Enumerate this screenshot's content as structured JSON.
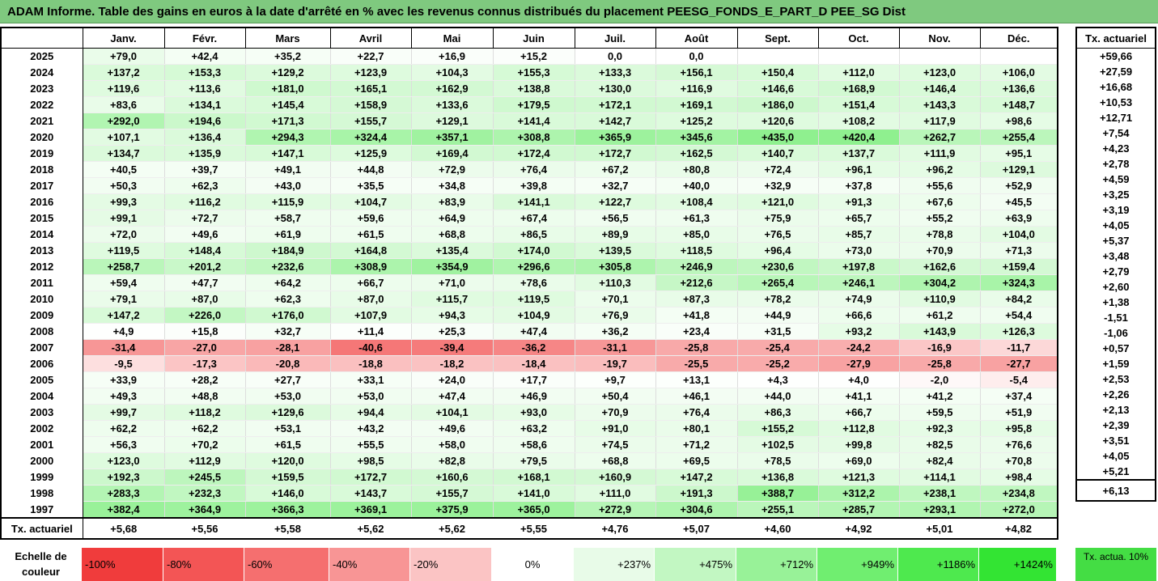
{
  "title": "ADAM Informe. Table des gains en euros à la date d'arrêté en % avec les revenus connus distribués du placement PEESG_FONDS_E_PART_D PEE_SG Dist",
  "chart_data": {
    "type": "heatmap",
    "title": "ADAM Informe. Table des gains en euros à la date d'arrêté en % avec les revenus connus distribués du placement PEESG_FONDS_E_PART_D PEE_SG Dist",
    "columns": [
      "Janv.",
      "Févr.",
      "Mars",
      "Avril",
      "Mai",
      "Juin",
      "Juil.",
      "Août",
      "Sept.",
      "Oct.",
      "Nov.",
      "Déc."
    ],
    "rate_header": "Tx. actuariel",
    "rows": [
      {
        "year": "2025",
        "values": [
          "+79,0",
          "+42,4",
          "+35,2",
          "+22,7",
          "+16,9",
          "+15,2",
          "0,0",
          "0,0",
          "",
          "",
          "",
          ""
        ],
        "rate": ""
      },
      {
        "year": "2024",
        "values": [
          "+137,2",
          "+153,3",
          "+129,2",
          "+123,9",
          "+104,3",
          "+155,3",
          "+133,3",
          "+156,1",
          "+150,4",
          "+112,0",
          "+123,0",
          "+106,0"
        ],
        "rate": "+59,66"
      },
      {
        "year": "2023",
        "values": [
          "+119,6",
          "+113,6",
          "+181,0",
          "+165,1",
          "+162,9",
          "+138,8",
          "+130,0",
          "+116,9",
          "+146,6",
          "+168,9",
          "+146,4",
          "+136,6"
        ],
        "rate": "+27,59"
      },
      {
        "year": "2022",
        "values": [
          "+83,6",
          "+134,1",
          "+145,4",
          "+158,9",
          "+133,6",
          "+179,5",
          "+172,1",
          "+169,1",
          "+186,0",
          "+151,4",
          "+143,3",
          "+148,7"
        ],
        "rate": "+16,68"
      },
      {
        "year": "2021",
        "values": [
          "+292,0",
          "+194,6",
          "+171,3",
          "+155,7",
          "+129,1",
          "+141,4",
          "+142,7",
          "+125,2",
          "+120,6",
          "+108,2",
          "+117,9",
          "+98,6"
        ],
        "rate": "+10,53"
      },
      {
        "year": "2020",
        "values": [
          "+107,1",
          "+136,4",
          "+294,3",
          "+324,4",
          "+357,1",
          "+308,8",
          "+365,9",
          "+345,6",
          "+435,0",
          "+420,4",
          "+262,7",
          "+255,4"
        ],
        "rate": "+12,71"
      },
      {
        "year": "2019",
        "values": [
          "+134,7",
          "+135,9",
          "+147,1",
          "+125,9",
          "+169,4",
          "+172,4",
          "+172,7",
          "+162,5",
          "+140,7",
          "+137,7",
          "+111,9",
          "+95,1"
        ],
        "rate": "+7,54"
      },
      {
        "year": "2018",
        "values": [
          "+40,5",
          "+39,7",
          "+49,1",
          "+44,8",
          "+72,9",
          "+76,4",
          "+67,2",
          "+80,8",
          "+72,4",
          "+96,1",
          "+96,2",
          "+129,1"
        ],
        "rate": "+4,23"
      },
      {
        "year": "2017",
        "values": [
          "+50,3",
          "+62,3",
          "+43,0",
          "+35,5",
          "+34,8",
          "+39,8",
          "+32,7",
          "+40,0",
          "+32,9",
          "+37,8",
          "+55,6",
          "+52,9"
        ],
        "rate": "+2,78"
      },
      {
        "year": "2016",
        "values": [
          "+99,3",
          "+116,2",
          "+115,9",
          "+104,7",
          "+83,9",
          "+141,1",
          "+122,7",
          "+108,4",
          "+121,0",
          "+91,3",
          "+67,6",
          "+45,5"
        ],
        "rate": "+4,59"
      },
      {
        "year": "2015",
        "values": [
          "+99,1",
          "+72,7",
          "+58,7",
          "+59,6",
          "+64,9",
          "+67,4",
          "+56,5",
          "+61,3",
          "+75,9",
          "+65,7",
          "+55,2",
          "+63,9"
        ],
        "rate": "+3,25"
      },
      {
        "year": "2014",
        "values": [
          "+72,0",
          "+49,6",
          "+61,9",
          "+61,5",
          "+68,8",
          "+86,5",
          "+89,9",
          "+85,0",
          "+76,5",
          "+85,7",
          "+78,8",
          "+104,0"
        ],
        "rate": "+3,19"
      },
      {
        "year": "2013",
        "values": [
          "+119,5",
          "+148,4",
          "+184,9",
          "+164,8",
          "+135,4",
          "+174,0",
          "+139,5",
          "+118,5",
          "+96,4",
          "+73,0",
          "+70,9",
          "+71,3"
        ],
        "rate": "+4,05"
      },
      {
        "year": "2012",
        "values": [
          "+258,7",
          "+201,2",
          "+232,6",
          "+308,9",
          "+354,9",
          "+296,6",
          "+305,8",
          "+246,9",
          "+230,6",
          "+197,8",
          "+162,6",
          "+159,4"
        ],
        "rate": "+5,37"
      },
      {
        "year": "2011",
        "values": [
          "+59,4",
          "+47,7",
          "+64,2",
          "+66,7",
          "+71,0",
          "+78,6",
          "+110,3",
          "+212,6",
          "+265,4",
          "+246,1",
          "+304,2",
          "+324,3"
        ],
        "rate": "+3,48"
      },
      {
        "year": "2010",
        "values": [
          "+79,1",
          "+87,0",
          "+62,3",
          "+87,0",
          "+115,7",
          "+119,5",
          "+70,1",
          "+87,3",
          "+78,2",
          "+74,9",
          "+110,9",
          "+84,2"
        ],
        "rate": "+2,79"
      },
      {
        "year": "2009",
        "values": [
          "+147,2",
          "+226,0",
          "+176,0",
          "+107,9",
          "+94,3",
          "+104,9",
          "+76,9",
          "+41,8",
          "+44,9",
          "+66,6",
          "+61,2",
          "+54,4"
        ],
        "rate": "+2,60"
      },
      {
        "year": "2008",
        "values": [
          "+4,9",
          "+15,8",
          "+32,7",
          "+11,4",
          "+25,3",
          "+47,4",
          "+36,2",
          "+23,4",
          "+31,5",
          "+93,2",
          "+143,9",
          "+126,3"
        ],
        "rate": "+1,38"
      },
      {
        "year": "2007",
        "values": [
          "-31,4",
          "-27,0",
          "-28,1",
          "-40,6",
          "-39,4",
          "-36,2",
          "-31,1",
          "-25,8",
          "-25,4",
          "-24,2",
          "-16,9",
          "-11,7"
        ],
        "rate": "-1,51"
      },
      {
        "year": "2006",
        "values": [
          "-9,5",
          "-17,3",
          "-20,8",
          "-18,8",
          "-18,2",
          "-18,4",
          "-19,7",
          "-25,5",
          "-25,2",
          "-27,9",
          "-25,8",
          "-27,7"
        ],
        "rate": "-1,06"
      },
      {
        "year": "2005",
        "values": [
          "+33,9",
          "+28,2",
          "+27,7",
          "+33,1",
          "+24,0",
          "+17,7",
          "+9,7",
          "+13,1",
          "+4,3",
          "+4,0",
          "-2,0",
          "-5,4"
        ],
        "rate": "+0,57"
      },
      {
        "year": "2004",
        "values": [
          "+49,3",
          "+48,8",
          "+53,0",
          "+53,0",
          "+47,4",
          "+46,9",
          "+50,4",
          "+46,1",
          "+44,0",
          "+41,1",
          "+41,2",
          "+37,4"
        ],
        "rate": "+1,59"
      },
      {
        "year": "2003",
        "values": [
          "+99,7",
          "+118,2",
          "+129,6",
          "+94,4",
          "+104,1",
          "+93,0",
          "+70,9",
          "+76,4",
          "+86,3",
          "+66,7",
          "+59,5",
          "+51,9"
        ],
        "rate": "+2,53"
      },
      {
        "year": "2002",
        "values": [
          "+62,2",
          "+62,2",
          "+53,1",
          "+43,2",
          "+49,6",
          "+63,2",
          "+91,0",
          "+80,1",
          "+155,2",
          "+112,8",
          "+92,3",
          "+95,8"
        ],
        "rate": "+2,26"
      },
      {
        "year": "2001",
        "values": [
          "+56,3",
          "+70,2",
          "+61,5",
          "+55,5",
          "+58,0",
          "+58,6",
          "+74,5",
          "+71,2",
          "+102,5",
          "+99,8",
          "+82,5",
          "+76,6"
        ],
        "rate": "+2,13"
      },
      {
        "year": "2000",
        "values": [
          "+123,0",
          "+112,9",
          "+120,0",
          "+98,5",
          "+82,8",
          "+79,5",
          "+68,8",
          "+69,5",
          "+78,5",
          "+69,0",
          "+82,4",
          "+70,8"
        ],
        "rate": "+2,39"
      },
      {
        "year": "1999",
        "values": [
          "+192,3",
          "+245,5",
          "+159,5",
          "+172,7",
          "+160,6",
          "+168,1",
          "+160,9",
          "+147,2",
          "+136,8",
          "+121,3",
          "+114,1",
          "+98,4"
        ],
        "rate": "+3,51"
      },
      {
        "year": "1998",
        "values": [
          "+283,3",
          "+232,3",
          "+146,0",
          "+143,7",
          "+155,7",
          "+141,0",
          "+111,0",
          "+191,3",
          "+388,7",
          "+312,2",
          "+238,1",
          "+234,8"
        ],
        "rate": "+4,05"
      },
      {
        "year": "1997",
        "values": [
          "+382,4",
          "+364,9",
          "+366,3",
          "+369,1",
          "+375,9",
          "+365,0",
          "+272,9",
          "+304,6",
          "+255,1",
          "+285,7",
          "+293,1",
          "+272,0"
        ],
        "rate": "+5,21"
      }
    ],
    "footer": {
      "label": "Tx. actuariel",
      "values": [
        "+5,68",
        "+5,56",
        "+5,58",
        "+5,62",
        "+5,62",
        "+5,55",
        "+4,76",
        "+5,07",
        "+4,60",
        "+4,92",
        "+5,01",
        "+4,82"
      ],
      "rate": "+6,13"
    }
  },
  "legend": {
    "label": "Echelle de couleur",
    "items": [
      {
        "text": "-100%",
        "color": "#f03c3c"
      },
      {
        "text": "-80%",
        "color": "#f35555"
      },
      {
        "text": "-60%",
        "color": "#f56f6f"
      },
      {
        "text": "-40%",
        "color": "#f89595"
      },
      {
        "text": "-20%",
        "color": "#fbc4c4"
      },
      {
        "text": "0%",
        "color": "#ffffff"
      },
      {
        "text": "+237%",
        "color": "#e8fbe8"
      },
      {
        "text": "+475%",
        "color": "#c2f7c2"
      },
      {
        "text": "+712%",
        "color": "#98f298"
      },
      {
        "text": "+949%",
        "color": "#70ee70"
      },
      {
        "text": "+1186%",
        "color": "#4ee94e"
      },
      {
        "text": "+1424%",
        "color": "#33e433"
      }
    ],
    "rate_label": "Tx. actua. 10%",
    "rate_color": "#44dd44"
  }
}
